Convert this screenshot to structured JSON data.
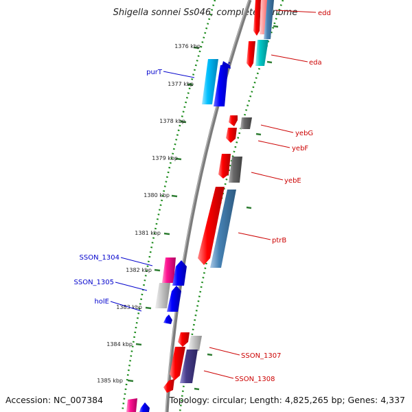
{
  "title": "Shigella sonnei Ss046, complete genome",
  "accession": "Accession: NC_007384",
  "summary": "Topology: circular; Length: 4,825,265 bp; Genes: 4,337",
  "ticks": [
    "1376 kbp",
    "1377 kbp",
    "1378 kbp",
    "1379 kbp",
    "1380 kbp",
    "1381 kbp",
    "1382 kbp",
    "1383 kbp",
    "1384 kbp",
    "1385 kbp"
  ],
  "right_labels": [
    "edd",
    "eda",
    "yebG",
    "yebF",
    "yebE",
    "ptrB",
    "SSON_1307",
    "SSON_1308"
  ],
  "left_labels": [
    "purT",
    "SSON_1304",
    "SSON_1305",
    "holE"
  ],
  "colors": {
    "red": "#ff0000",
    "blue": "#0000ff",
    "cyan": "#00c0ff",
    "teal": "#00c8c8",
    "steelblue": "#4682b4",
    "magenta": "#ff1493",
    "gray": "#696969",
    "lightgray": "#c0c0c0",
    "purple": "#483d8b",
    "tick_green": "#2e7d32",
    "backbone": "#808080",
    "label_red": "#cc0000",
    "label_blue": "#0000cc"
  }
}
